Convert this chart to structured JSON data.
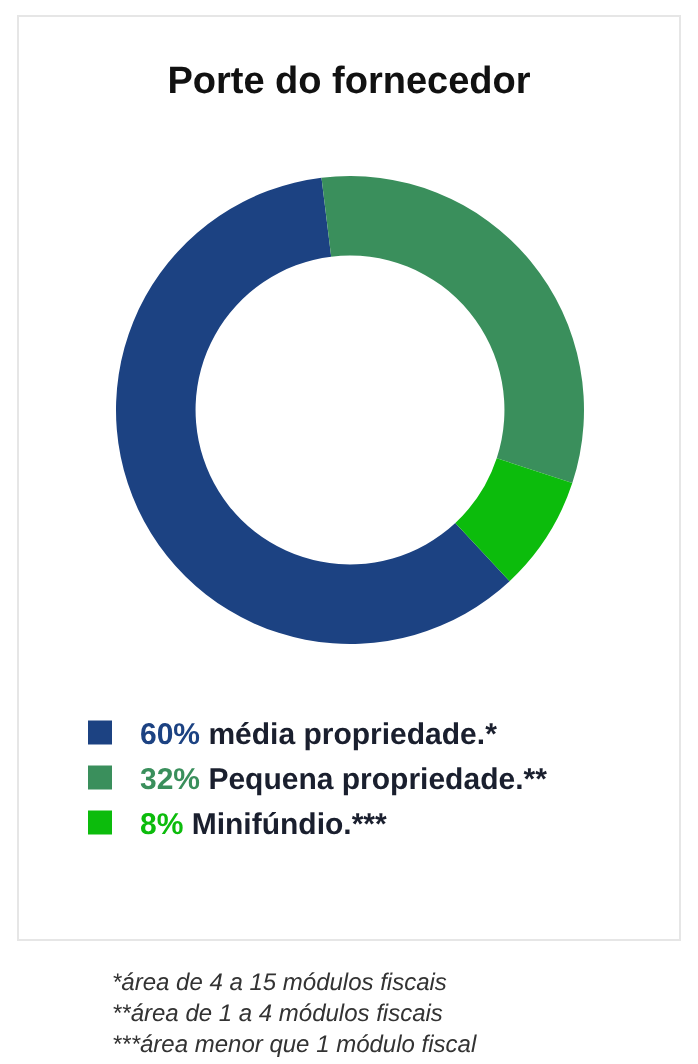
{
  "chart_data": {
    "type": "donut",
    "title": "Porte do fornecedor",
    "categories": [
      "60% média propriedade.*",
      "32% Pequena propriedade.**",
      "8% Minifúndio.***"
    ],
    "values": [
      60,
      32,
      8
    ],
    "colors": [
      "#1c4282",
      "#3a8f5c",
      "#0cbc0c"
    ],
    "legend": "bottom left",
    "annotations": [
      "*área de 4 a 15 módulos fiscais",
      "**área de 1 a 4 módulos fiscais",
      "***área menor que 1 módulo fiscal"
    ]
  }
}
